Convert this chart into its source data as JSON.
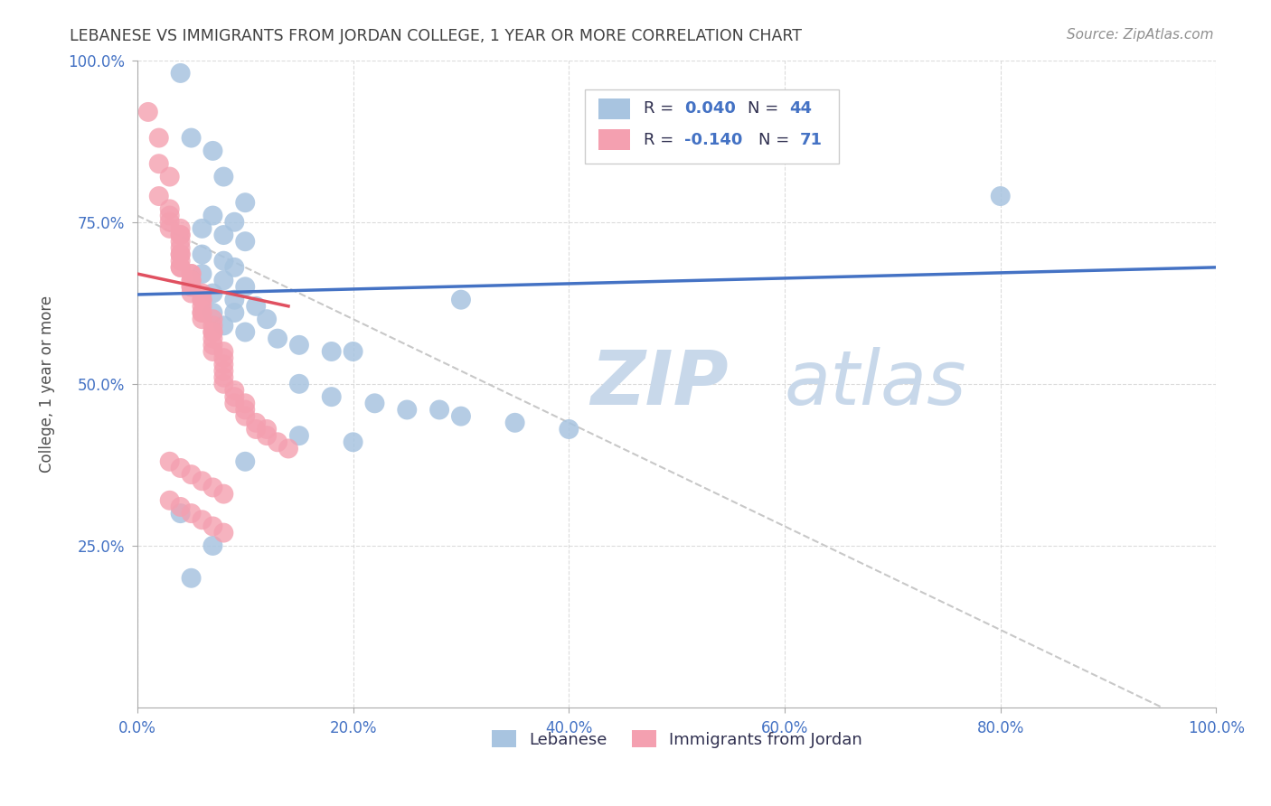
{
  "title": "LEBANESE VS IMMIGRANTS FROM JORDAN COLLEGE, 1 YEAR OR MORE CORRELATION CHART",
  "source": "Source: ZipAtlas.com",
  "ylabel": "College, 1 year or more",
  "xlim": [
    0.0,
    1.0
  ],
  "ylim": [
    0.0,
    1.0
  ],
  "xtick_labels": [
    "0.0%",
    "20.0%",
    "40.0%",
    "60.0%",
    "80.0%",
    "100.0%"
  ],
  "xtick_vals": [
    0.0,
    0.2,
    0.4,
    0.6,
    0.8,
    1.0
  ],
  "ytick_labels": [
    "25.0%",
    "50.0%",
    "75.0%",
    "100.0%"
  ],
  "ytick_vals": [
    0.25,
    0.5,
    0.75,
    1.0
  ],
  "blue_color": "#a8c4e0",
  "pink_color": "#f4a0b0",
  "line_blue": "#4472c4",
  "line_pink": "#e05060",
  "line_dashed_color": "#c8c8c8",
  "watermark_color": "#c8d8ea",
  "background_color": "#ffffff",
  "title_color": "#404040",
  "source_color": "#909090",
  "axis_label_color": "#505050",
  "tick_color": "#4472c4",
  "blue_scatter": [
    [
      0.04,
      0.98
    ],
    [
      0.05,
      0.88
    ],
    [
      0.07,
      0.86
    ],
    [
      0.08,
      0.82
    ],
    [
      0.1,
      0.78
    ],
    [
      0.07,
      0.76
    ],
    [
      0.09,
      0.75
    ],
    [
      0.06,
      0.74
    ],
    [
      0.08,
      0.73
    ],
    [
      0.1,
      0.72
    ],
    [
      0.06,
      0.7
    ],
    [
      0.08,
      0.69
    ],
    [
      0.09,
      0.68
    ],
    [
      0.06,
      0.67
    ],
    [
      0.08,
      0.66
    ],
    [
      0.1,
      0.65
    ],
    [
      0.07,
      0.64
    ],
    [
      0.09,
      0.63
    ],
    [
      0.11,
      0.62
    ],
    [
      0.07,
      0.61
    ],
    [
      0.09,
      0.61
    ],
    [
      0.12,
      0.6
    ],
    [
      0.08,
      0.59
    ],
    [
      0.1,
      0.58
    ],
    [
      0.13,
      0.57
    ],
    [
      0.15,
      0.56
    ],
    [
      0.18,
      0.55
    ],
    [
      0.2,
      0.55
    ],
    [
      0.3,
      0.63
    ],
    [
      0.15,
      0.5
    ],
    [
      0.18,
      0.48
    ],
    [
      0.22,
      0.47
    ],
    [
      0.25,
      0.46
    ],
    [
      0.28,
      0.46
    ],
    [
      0.3,
      0.45
    ],
    [
      0.35,
      0.44
    ],
    [
      0.4,
      0.43
    ],
    [
      0.15,
      0.42
    ],
    [
      0.2,
      0.41
    ],
    [
      0.8,
      0.79
    ],
    [
      0.04,
      0.3
    ],
    [
      0.07,
      0.25
    ],
    [
      0.05,
      0.2
    ],
    [
      0.1,
      0.38
    ]
  ],
  "pink_scatter": [
    [
      0.01,
      0.92
    ],
    [
      0.02,
      0.88
    ],
    [
      0.02,
      0.84
    ],
    [
      0.03,
      0.82
    ],
    [
      0.02,
      0.79
    ],
    [
      0.03,
      0.77
    ],
    [
      0.03,
      0.76
    ],
    [
      0.03,
      0.75
    ],
    [
      0.03,
      0.74
    ],
    [
      0.04,
      0.74
    ],
    [
      0.04,
      0.73
    ],
    [
      0.04,
      0.73
    ],
    [
      0.04,
      0.72
    ],
    [
      0.04,
      0.71
    ],
    [
      0.04,
      0.7
    ],
    [
      0.04,
      0.7
    ],
    [
      0.04,
      0.69
    ],
    [
      0.04,
      0.68
    ],
    [
      0.04,
      0.68
    ],
    [
      0.05,
      0.67
    ],
    [
      0.05,
      0.67
    ],
    [
      0.05,
      0.66
    ],
    [
      0.05,
      0.66
    ],
    [
      0.05,
      0.65
    ],
    [
      0.05,
      0.65
    ],
    [
      0.05,
      0.64
    ],
    [
      0.06,
      0.64
    ],
    [
      0.06,
      0.63
    ],
    [
      0.06,
      0.63
    ],
    [
      0.06,
      0.62
    ],
    [
      0.06,
      0.61
    ],
    [
      0.06,
      0.61
    ],
    [
      0.06,
      0.6
    ],
    [
      0.07,
      0.6
    ],
    [
      0.07,
      0.59
    ],
    [
      0.07,
      0.58
    ],
    [
      0.07,
      0.58
    ],
    [
      0.07,
      0.57
    ],
    [
      0.07,
      0.56
    ],
    [
      0.07,
      0.55
    ],
    [
      0.08,
      0.55
    ],
    [
      0.08,
      0.54
    ],
    [
      0.08,
      0.53
    ],
    [
      0.08,
      0.52
    ],
    [
      0.08,
      0.51
    ],
    [
      0.08,
      0.5
    ],
    [
      0.09,
      0.49
    ],
    [
      0.09,
      0.48
    ],
    [
      0.09,
      0.47
    ],
    [
      0.1,
      0.47
    ],
    [
      0.1,
      0.46
    ],
    [
      0.1,
      0.45
    ],
    [
      0.11,
      0.44
    ],
    [
      0.11,
      0.43
    ],
    [
      0.12,
      0.43
    ],
    [
      0.12,
      0.42
    ],
    [
      0.13,
      0.41
    ],
    [
      0.14,
      0.4
    ],
    [
      0.03,
      0.38
    ],
    [
      0.04,
      0.37
    ],
    [
      0.05,
      0.36
    ],
    [
      0.06,
      0.35
    ],
    [
      0.07,
      0.34
    ],
    [
      0.08,
      0.33
    ],
    [
      0.03,
      0.32
    ],
    [
      0.04,
      0.31
    ],
    [
      0.05,
      0.3
    ],
    [
      0.06,
      0.29
    ],
    [
      0.07,
      0.28
    ],
    [
      0.08,
      0.27
    ]
  ],
  "blue_line_x": [
    0.0,
    1.0
  ],
  "blue_line_y": [
    0.638,
    0.68
  ],
  "pink_line_x": [
    0.0,
    0.14
  ],
  "pink_line_y": [
    0.67,
    0.62
  ],
  "dashed_line_x": [
    0.0,
    0.95
  ],
  "dashed_line_y": [
    0.76,
    0.0
  ]
}
